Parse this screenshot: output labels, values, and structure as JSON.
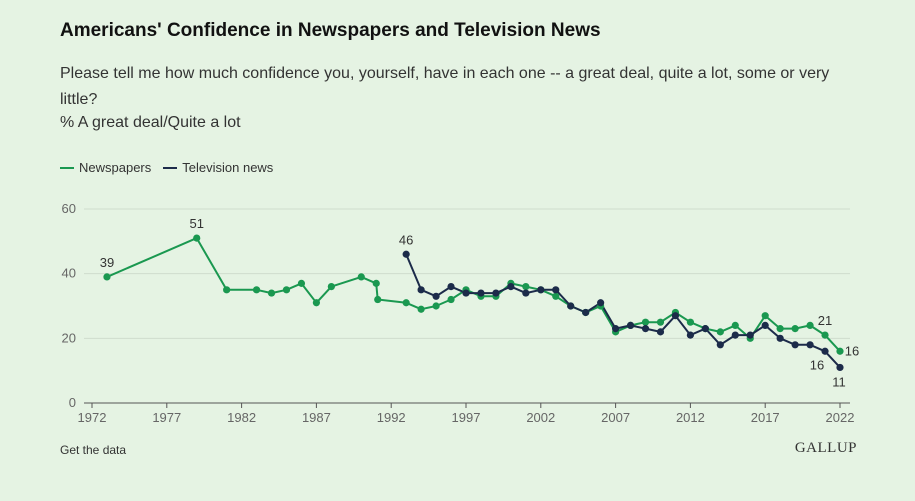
{
  "title": "Americans' Confidence in Newspapers and Television News",
  "subtitle": "Please tell me how much confidence you, yourself, have in each one -- a great deal, quite a lot, some or very little?",
  "measure": "% A great deal/Quite a lot",
  "footer": {
    "get_data": "Get the data",
    "logo": "GALLUP"
  },
  "colors": {
    "newspapers": "#1a9850",
    "television": "#1c2b4a",
    "background": "#e5f3e3",
    "grid": "#cfdccd"
  },
  "chart_data": {
    "type": "line",
    "title": "Americans' Confidence in Newspapers and Television News",
    "ylabel": "% A great deal/Quite a lot",
    "xlabel": "",
    "ylim": [
      0,
      60
    ],
    "yticks": [
      0,
      20,
      40,
      60
    ],
    "xlim": [
      1972,
      2022
    ],
    "xticks": [
      1972,
      1977,
      1982,
      1987,
      1992,
      1997,
      2002,
      2007,
      2012,
      2017,
      2022
    ],
    "legend": "top-left",
    "series": [
      {
        "name": "Newspapers",
        "color": "#1a9850",
        "points": [
          {
            "x": 1973,
            "y": 39
          },
          {
            "x": 1979,
            "y": 51
          },
          {
            "x": 1981,
            "y": 35
          },
          {
            "x": 1983,
            "y": 35
          },
          {
            "x": 1984,
            "y": 34
          },
          {
            "x": 1985,
            "y": 35
          },
          {
            "x": 1986,
            "y": 37
          },
          {
            "x": 1987,
            "y": 31
          },
          {
            "x": 1988,
            "y": 36
          },
          {
            "x": 1990,
            "y": 39
          },
          {
            "x": 1991,
            "y": 37
          },
          {
            "x": 1991.1,
            "y": 32
          },
          {
            "x": 1993,
            "y": 31
          },
          {
            "x": 1994,
            "y": 29
          },
          {
            "x": 1995,
            "y": 30
          },
          {
            "x": 1996,
            "y": 32
          },
          {
            "x": 1997,
            "y": 35
          },
          {
            "x": 1998,
            "y": 33
          },
          {
            "x": 1999,
            "y": 33
          },
          {
            "x": 2000,
            "y": 37
          },
          {
            "x": 2001,
            "y": 36
          },
          {
            "x": 2002,
            "y": 35
          },
          {
            "x": 2003,
            "y": 33
          },
          {
            "x": 2004,
            "y": 30
          },
          {
            "x": 2005,
            "y": 28
          },
          {
            "x": 2006,
            "y": 30
          },
          {
            "x": 2007,
            "y": 22
          },
          {
            "x": 2008,
            "y": 24
          },
          {
            "x": 2009,
            "y": 25
          },
          {
            "x": 2010,
            "y": 25
          },
          {
            "x": 2011,
            "y": 28
          },
          {
            "x": 2012,
            "y": 25
          },
          {
            "x": 2013,
            "y": 23
          },
          {
            "x": 2014,
            "y": 22
          },
          {
            "x": 2015,
            "y": 24
          },
          {
            "x": 2016,
            "y": 20
          },
          {
            "x": 2017,
            "y": 27
          },
          {
            "x": 2018,
            "y": 23
          },
          {
            "x": 2019,
            "y": 23
          },
          {
            "x": 2020,
            "y": 24
          },
          {
            "x": 2021,
            "y": 21
          },
          {
            "x": 2022,
            "y": 16
          }
        ]
      },
      {
        "name": "Television news",
        "color": "#1c2b4a",
        "points": [
          {
            "x": 1993,
            "y": 46
          },
          {
            "x": 1994,
            "y": 35
          },
          {
            "x": 1995,
            "y": 33
          },
          {
            "x": 1996,
            "y": 36
          },
          {
            "x": 1997,
            "y": 34
          },
          {
            "x": 1998,
            "y": 34
          },
          {
            "x": 1999,
            "y": 34
          },
          {
            "x": 2000,
            "y": 36
          },
          {
            "x": 2001,
            "y": 34
          },
          {
            "x": 2002,
            "y": 35
          },
          {
            "x": 2003,
            "y": 35
          },
          {
            "x": 2004,
            "y": 30
          },
          {
            "x": 2005,
            "y": 28
          },
          {
            "x": 2006,
            "y": 31
          },
          {
            "x": 2007,
            "y": 23
          },
          {
            "x": 2008,
            "y": 24
          },
          {
            "x": 2009,
            "y": 23
          },
          {
            "x": 2010,
            "y": 22
          },
          {
            "x": 2011,
            "y": 27
          },
          {
            "x": 2012,
            "y": 21
          },
          {
            "x": 2013,
            "y": 23
          },
          {
            "x": 2014,
            "y": 18
          },
          {
            "x": 2015,
            "y": 21
          },
          {
            "x": 2016,
            "y": 21
          },
          {
            "x": 2017,
            "y": 24
          },
          {
            "x": 2018,
            "y": 20
          },
          {
            "x": 2019,
            "y": 18
          },
          {
            "x": 2020,
            "y": 18
          },
          {
            "x": 2021,
            "y": 16
          },
          {
            "x": 2022,
            "y": 11
          }
        ]
      }
    ],
    "annotations": [
      {
        "series": "Newspapers",
        "x": 1973,
        "y": 39,
        "text": "39",
        "placement": "above"
      },
      {
        "series": "Newspapers",
        "x": 1979,
        "y": 51,
        "text": "51",
        "placement": "above"
      },
      {
        "series": "Television news",
        "x": 1993,
        "y": 46,
        "text": "46",
        "placement": "above"
      },
      {
        "series": "Newspapers",
        "x": 2021,
        "y": 21,
        "text": "21",
        "placement": "above"
      },
      {
        "series": "Television news",
        "x": 2021,
        "y": 16,
        "text": "16",
        "placement": "below"
      },
      {
        "series": "Newspapers",
        "x": 2022,
        "y": 16,
        "text": "16",
        "placement": "right"
      },
      {
        "series": "Television news",
        "x": 2022,
        "y": 11,
        "text": "11",
        "placement": "below"
      }
    ]
  }
}
